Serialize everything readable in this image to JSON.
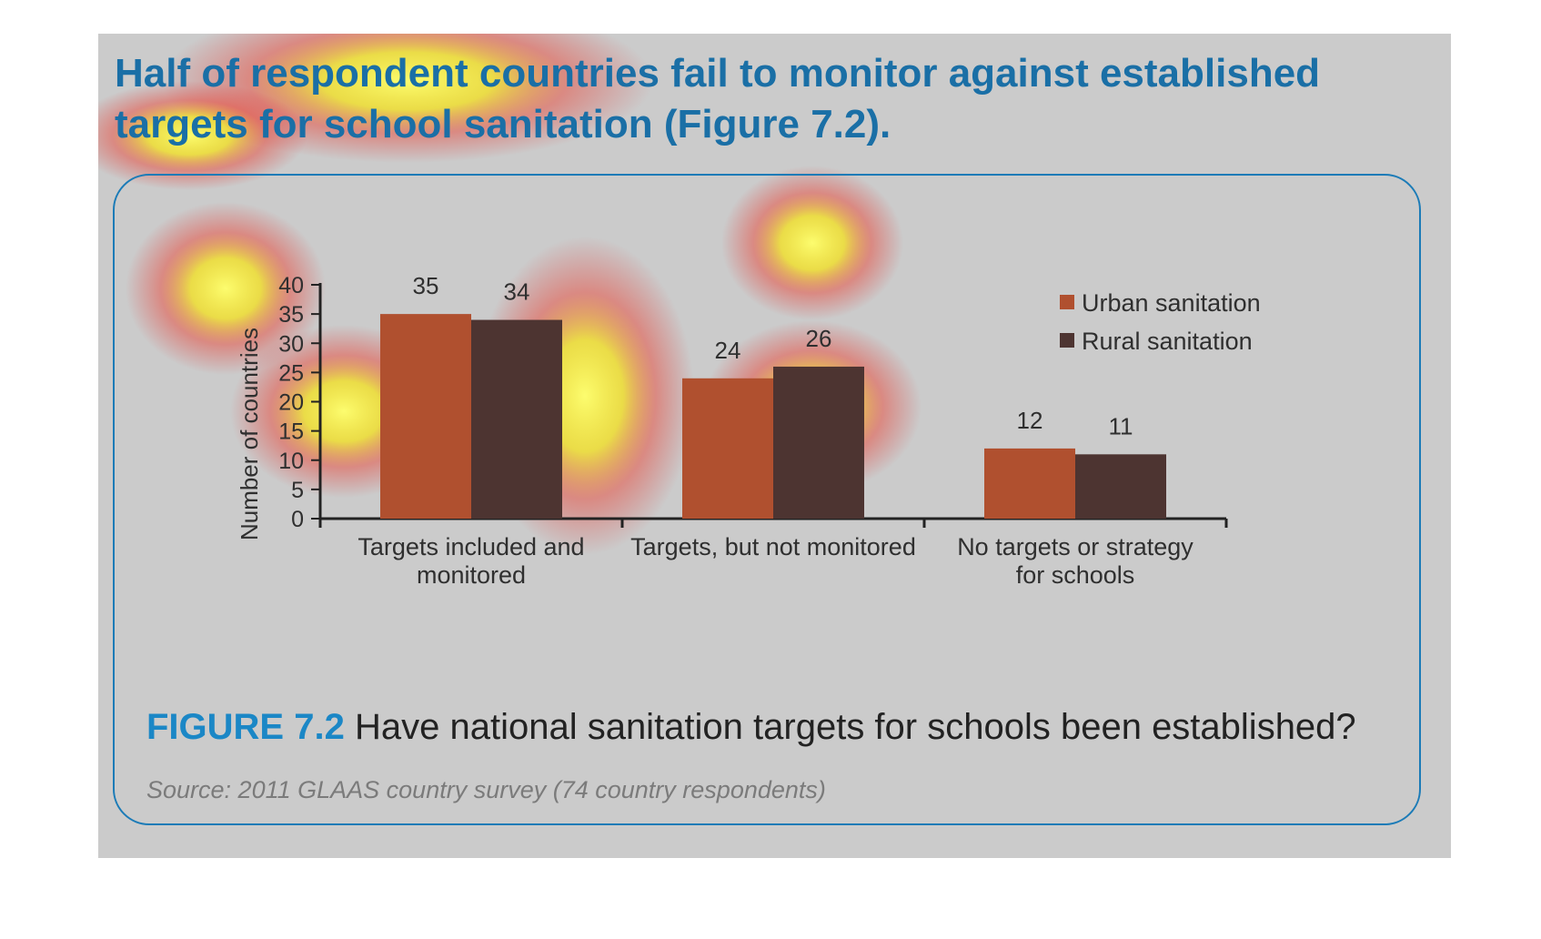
{
  "heading": "Half of respondent countries fail to monitor against established targets for school sanitation (Figure 7.2).",
  "caption": {
    "figure_label": "FIGURE 7.2",
    "text": "Have national sanitation targets for schools been established?"
  },
  "source": "Source: 2011 GLAAS country survey (74 country respondents)",
  "colors": {
    "urban": "#b0502f",
    "rural": "#4d3431",
    "accent": "#1b87c6",
    "panel": "#cbcbcb"
  },
  "chart_data": {
    "type": "bar",
    "categories": [
      [
        "Targets included and",
        "monitored"
      ],
      [
        "Targets, but not monitored"
      ],
      [
        "No targets or strategy",
        "for schools"
      ]
    ],
    "series": [
      {
        "name": "Urban sanitation",
        "values": [
          35,
          24,
          12
        ]
      },
      {
        "name": "Rural sanitation",
        "values": [
          34,
          26,
          11
        ]
      }
    ],
    "ylabel": "Number of countries",
    "xlabel": "",
    "ylim": [
      0,
      40
    ],
    "yticks": [
      0,
      5,
      10,
      15,
      20,
      25,
      30,
      35,
      40
    ],
    "data_labels": true,
    "legend_position": "top-right",
    "grid": false
  }
}
